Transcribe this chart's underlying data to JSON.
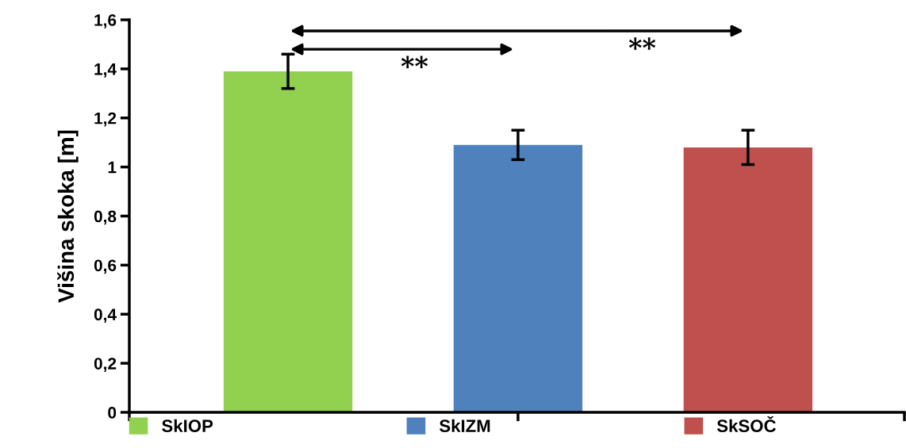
{
  "chart_data": {
    "type": "bar",
    "ylabel": "Višina skoka [m]",
    "categories": [
      null,
      null,
      null
    ],
    "series": [
      {
        "name": "SkIOP",
        "color": "#92d050",
        "values": [
          1.39,
          null,
          null
        ],
        "errors": [
          0.07,
          null,
          null
        ]
      },
      {
        "name": "SkIZM",
        "color": "#4f81bd",
        "values": [
          null,
          1.09,
          null
        ],
        "errors": [
          null,
          0.06,
          null
        ]
      },
      {
        "name": "SkSOČ",
        "color": "#c0504d",
        "values": [
          null,
          null,
          1.08
        ],
        "errors": [
          null,
          null,
          0.07
        ]
      }
    ],
    "ylim": [
      0,
      1.6
    ],
    "yticks": [
      0,
      {
        "value": 0.2,
        "label": "0,2"
      },
      {
        "value": 0.4,
        "label": "0,4"
      },
      {
        "value": 0.6,
        "label": "0,6"
      },
      {
        "value": 0.8,
        "label": "0,8"
      },
      1,
      {
        "value": 1.2,
        "label": "1,2"
      },
      {
        "value": 1.4,
        "label": "1,4"
      },
      {
        "value": 1.6,
        "label": "1,6"
      }
    ],
    "annotations": [
      "**",
      "**"
    ],
    "grid": false,
    "legend": "bottom"
  }
}
